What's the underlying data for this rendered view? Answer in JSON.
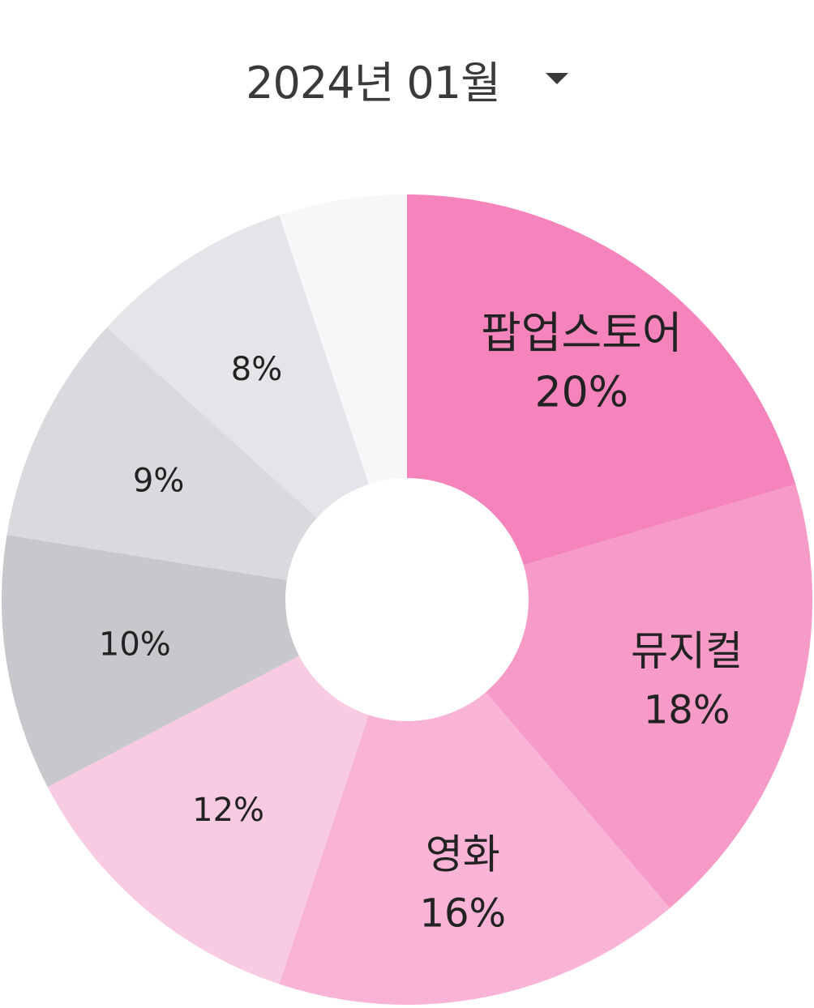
{
  "header": {
    "period_label": "2024년 01월"
  },
  "chart_data": {
    "type": "pie",
    "donut": true,
    "title": "",
    "categories": [
      "팝업스토어",
      "뮤지컬",
      "영화",
      "",
      "",
      "",
      "",
      ""
    ],
    "values": [
      20,
      18,
      16,
      12,
      10,
      9,
      8,
      5
    ],
    "value_labels": [
      "20%",
      "18%",
      "16%",
      "12%",
      "10%",
      "9%",
      "8%",
      ""
    ],
    "colors": [
      "#f484bb",
      "#f69ac8",
      "#f8b3d6",
      "#f9cbe3",
      "#c8c7cc",
      "#d9d9de",
      "#e5e5e9",
      "#f7f7f9"
    ],
    "start": "top",
    "direction": "clockwise",
    "legend": "none"
  }
}
